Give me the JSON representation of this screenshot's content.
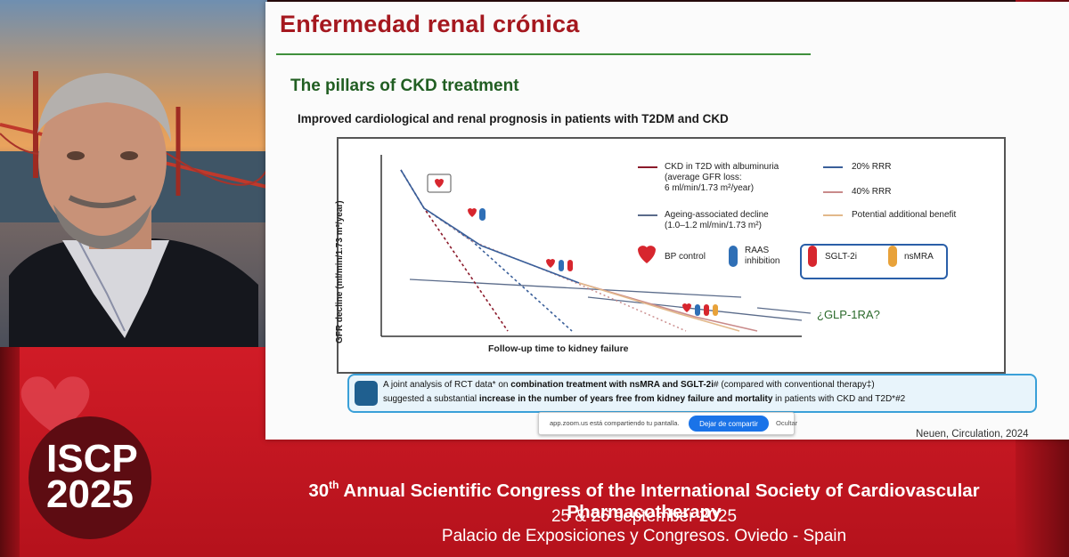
{
  "slide": {
    "title": "Enfermedad renal crónica",
    "subtitle": "The pillars of CKD treatment",
    "subheading": "Improved cardiological and renal prognosis in patients with T2DM and CKD",
    "chart": {
      "y_axis": "GFR decline (ml/min/1.73 m²/year)",
      "x_axis": "Follow-up time to kidney failure",
      "legend": {
        "ckd_line1": "CKD in T2D with albuminuria",
        "ckd_line2": "(average GFR loss:",
        "ckd_line3": "6 ml/min/1.73 m²/year)",
        "rrr20": "20% RRR",
        "rrr40": "40% RRR",
        "ageing_line1": "Ageing-associated decline",
        "ageing_line2": "(1.0–1.2 ml/min/1.73 m²)",
        "potential": "Potential additional benefit",
        "bp": "BP control",
        "raas_line1": "RAAS",
        "raas_line2": "inhibition",
        "sglt2": "SGLT-2i",
        "nsmra": "nsMRA"
      },
      "glp1": "¿GLP-1RA?",
      "colors": {
        "ckd": "#8b1a2b",
        "rrr20": "#3a5f9a",
        "rrr40": "#c98a8a",
        "ageing": "#5a6b8a",
        "potential": "#e2b88a",
        "bp": "#d7262e",
        "raas": "#2f6fb6",
        "sglt2": "#d7262e",
        "nsmra": "#e8a23a"
      }
    },
    "note": {
      "line1_a": "A joint analysis of RCT data* on ",
      "line1_b": "combination treatment with nsMRA and SGLT-2i",
      "line1_c": "# (compared with conventional therapy‡)",
      "line2_a": "suggested a substantial ",
      "line2_b": "increase in the number of years free from kidney failure and mortality",
      "line2_c": " in patients with CKD and T2D*#2"
    },
    "citation": "Neuen, Circulation, 2024"
  },
  "zoom_share": {
    "message": "app.zoom.us está compartiendo tu pantalla.",
    "stop_button": "Dejar de compartir",
    "hide_button": "Ocultar"
  },
  "congress": {
    "logo_line1": "ISCP",
    "logo_line2": "2025",
    "ordinal_number": "30",
    "ordinal_suffix": "th",
    "title_rest": " Annual Scientific Congress of the International Society of Cardiovascular Pharmacotherapy",
    "dates": "25 & 26 september 2025",
    "venue": "Palacio de Exposiciones y Congresos. Oviedo - Spain"
  }
}
